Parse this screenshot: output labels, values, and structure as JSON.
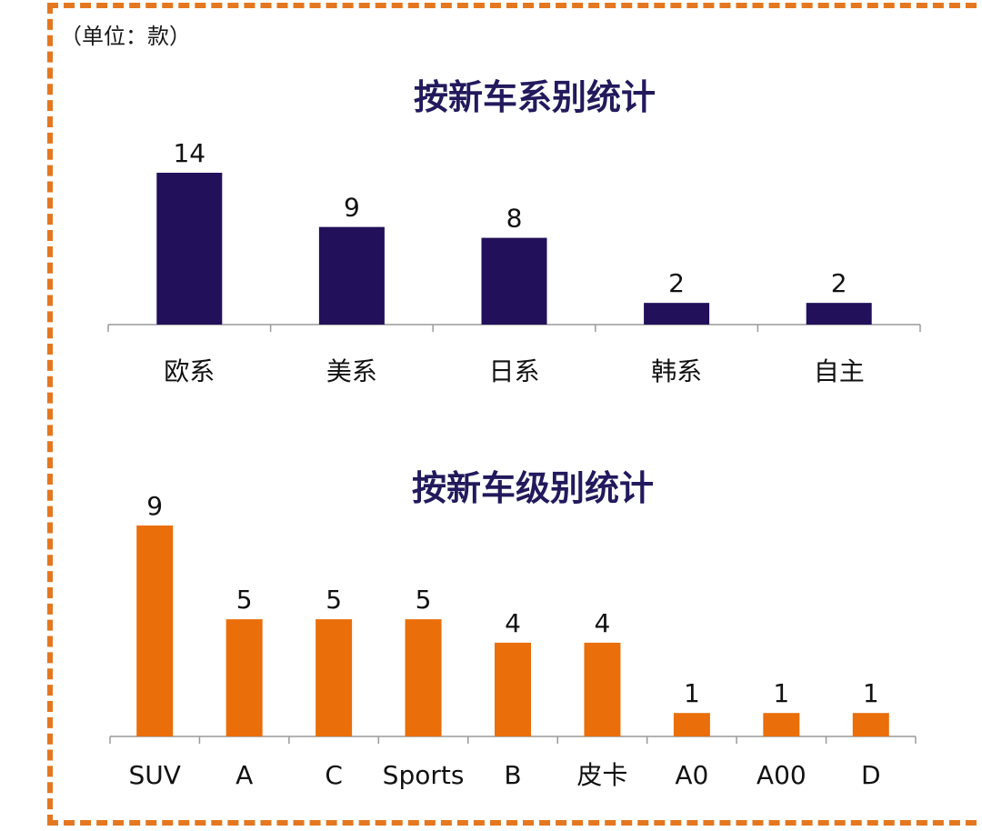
{
  "unit_label": "（单位：款）",
  "colors": {
    "frame": "#e4771f",
    "series1": "#22105a",
    "series2": "#ea6e0a"
  },
  "chart_data": [
    {
      "type": "bar",
      "title": "按新车系别统计",
      "categories": [
        "欧系",
        "美系",
        "日系",
        "韩系",
        "自主"
      ],
      "values": [
        14,
        9,
        8,
        2,
        2
      ],
      "xlabel": "",
      "ylabel": "",
      "ylim": [
        0,
        14
      ],
      "grid": false
    },
    {
      "type": "bar",
      "title": "按新车级别统计",
      "categories": [
        "SUV",
        "A",
        "C",
        "Sports",
        "B",
        "皮卡",
        "A0",
        "A00",
        "D"
      ],
      "values": [
        9,
        5,
        5,
        5,
        4,
        4,
        1,
        1,
        1
      ],
      "xlabel": "",
      "ylabel": "",
      "ylim": [
        0,
        9
      ],
      "grid": false
    }
  ]
}
